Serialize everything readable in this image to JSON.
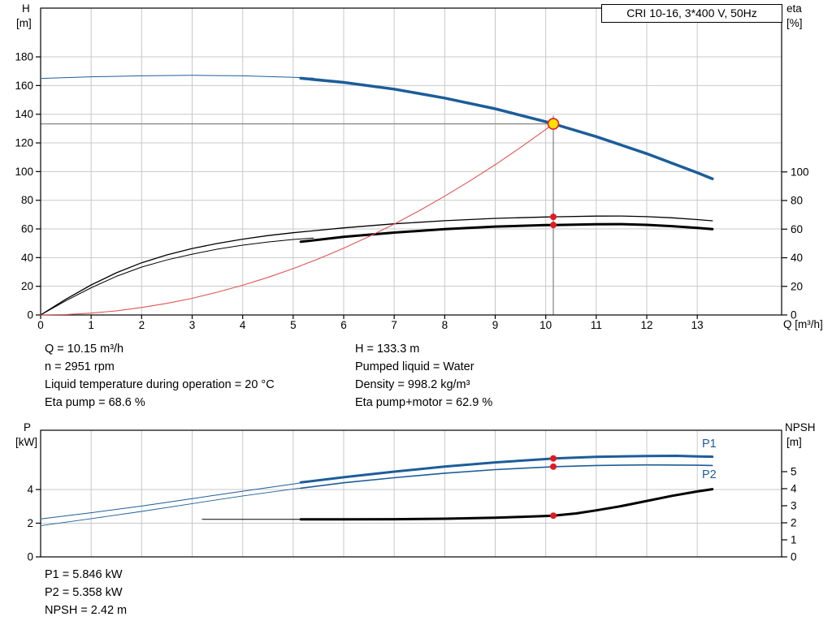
{
  "colors": {
    "blue": "#1c5d99",
    "black": "#000000",
    "red": "#e11b22",
    "system_red": "#dd5555",
    "duty_fill": "#ffe000",
    "grid": "#c8c8c8",
    "crosshair": "#8a8a8a",
    "frame": "#000000"
  },
  "stats": {
    "top_left": [
      "Q = 10.15 m³/h",
      "n = 2951 rpm",
      "Liquid temperature during operation = 20 °C",
      "Eta pump = 68.6 %"
    ],
    "top_right": [
      "H = 133.3 m",
      "Pumped liquid = Water",
      "Density = 998.2 kg/m³",
      "Eta pump+motor = 62.9 %"
    ],
    "bottom": [
      "P1 = 5.846 kW",
      "P2 = 5.358 kW",
      "NPSH = 2.42 m"
    ]
  },
  "chart_data": [
    {
      "name": "hq-eta-chart",
      "type": "line",
      "title": "CRI 10-16, 3*400 V, 50Hz",
      "x_axis": {
        "label": "Q [m³/h]",
        "ticks": [
          0,
          1,
          2,
          3,
          4,
          5,
          6,
          7,
          8,
          9,
          10,
          11,
          12,
          13
        ],
        "range": [
          0,
          14.67
        ],
        "show_tick_labels": true
      },
      "y_left": {
        "label_lines": [
          "H",
          "[m]"
        ],
        "ticks": [
          0,
          20,
          40,
          60,
          80,
          100,
          120,
          140,
          160,
          180
        ],
        "range": [
          0,
          214
        ]
      },
      "y_right": {
        "label_lines": [
          "eta",
          "[%]"
        ],
        "ticks": [
          0,
          20,
          40,
          60,
          80,
          100
        ],
        "range": [
          0,
          214.5
        ]
      },
      "duty_point": {
        "q_m3h": 10.15,
        "h_m": 133.3,
        "eta_pump_pct": 68.6,
        "eta_pump_motor_pct": 62.9
      },
      "crosshair": {
        "q": 10.15,
        "h": 133.3,
        "line_top": 139
      },
      "series": [
        {
          "name": "head-curve-extrapolated",
          "axis": "left",
          "color": "blue",
          "width": 1,
          "points": [
            [
              0,
              165
            ],
            [
              1,
              166.1
            ],
            [
              2,
              166.8
            ],
            [
              3,
              167.1
            ],
            [
              4,
              166.8
            ],
            [
              5,
              165.7
            ],
            [
              5.4,
              165.2
            ]
          ]
        },
        {
          "name": "head-curve",
          "axis": "left",
          "color": "blue",
          "width": 3.5,
          "points": [
            [
              5.15,
              165.1
            ],
            [
              6,
              162.2
            ],
            [
              7,
              157.5
            ],
            [
              8,
              151.3
            ],
            [
              9,
              143.8
            ],
            [
              10,
              134.8
            ],
            [
              10.15,
              133.3
            ],
            [
              11,
              124.4
            ],
            [
              12,
              112.5
            ],
            [
              13,
              99.2
            ],
            [
              13.3,
              95
            ]
          ]
        },
        {
          "name": "eta-pump-curve",
          "axis": "right",
          "color": "black",
          "width": 1.3,
          "points": [
            [
              0,
              0
            ],
            [
              0.5,
              11
            ],
            [
              1,
              21
            ],
            [
              1.5,
              29.5
            ],
            [
              2,
              36.5
            ],
            [
              2.5,
              42
            ],
            [
              3,
              46.5
            ],
            [
              3.5,
              50
            ],
            [
              4,
              53
            ],
            [
              4.5,
              55.5
            ],
            [
              5,
              57.5
            ],
            [
              6,
              60.9
            ],
            [
              7,
              63.7
            ],
            [
              8,
              65.9
            ],
            [
              9,
              67.5
            ],
            [
              10,
              68.5
            ],
            [
              10.15,
              68.6
            ],
            [
              11,
              69.1
            ],
            [
              11.5,
              69.2
            ],
            [
              12,
              68.7
            ],
            [
              12.5,
              67.9
            ],
            [
              13,
              66.7
            ],
            [
              13.3,
              65.8
            ]
          ]
        },
        {
          "name": "eta-pump-motor-extrapolated",
          "axis": "right",
          "color": "black",
          "width": 1,
          "points": [
            [
              0,
              0
            ],
            [
              0.5,
              10
            ],
            [
              1,
              19
            ],
            [
              1.5,
              27
            ],
            [
              2,
              33.5
            ],
            [
              2.5,
              38.5
            ],
            [
              3,
              42.5
            ],
            [
              3.5,
              46
            ],
            [
              4,
              48.8
            ],
            [
              4.5,
              51
            ],
            [
              5,
              52.8
            ],
            [
              5.4,
              53.8
            ]
          ]
        },
        {
          "name": "eta-pump-motor-curve",
          "axis": "right",
          "color": "black",
          "width": 3,
          "points": [
            [
              5.15,
              51.2
            ],
            [
              6,
              54.6
            ],
            [
              7,
              57.6
            ],
            [
              8,
              60
            ],
            [
              9,
              61.8
            ],
            [
              10,
              62.8
            ],
            [
              10.15,
              62.9
            ],
            [
              11,
              63.4
            ],
            [
              11.5,
              63.5
            ],
            [
              12,
              63
            ],
            [
              12.5,
              62.1
            ],
            [
              13,
              60.9
            ],
            [
              13.3,
              60
            ]
          ]
        },
        {
          "name": "system-curve",
          "axis": "left",
          "color": "system_red",
          "width": 1.1,
          "points": [
            [
              0,
              0
            ],
            [
              0.5,
              0.3
            ],
            [
              1,
              1.3
            ],
            [
              1.5,
              2.9
            ],
            [
              2,
              5.2
            ],
            [
              2.5,
              8.1
            ],
            [
              3,
              11.6
            ],
            [
              3.5,
              15.9
            ],
            [
              4,
              20.7
            ],
            [
              4.5,
              26.2
            ],
            [
              5,
              32.3
            ],
            [
              5.5,
              39.1
            ],
            [
              6,
              46.6
            ],
            [
              6.5,
              54.7
            ],
            [
              7,
              63.4
            ],
            [
              7.5,
              72.8
            ],
            [
              8,
              82.8
            ],
            [
              8.5,
              93.5
            ],
            [
              9,
              104.8
            ],
            [
              9.5,
              116.8
            ],
            [
              10,
              129.4
            ],
            [
              10.15,
              133.3
            ]
          ]
        }
      ],
      "markers": [
        {
          "name": "duty-point-marker",
          "axis": "left",
          "q": 10.15,
          "v": 133.3,
          "style": "ring"
        },
        {
          "name": "eta-pump-duty-dot",
          "axis": "right",
          "q": 10.15,
          "v": 68.6,
          "style": "dot"
        },
        {
          "name": "eta-pump-motor-duty-dot",
          "axis": "right",
          "q": 10.15,
          "v": 62.9,
          "style": "dot"
        }
      ]
    },
    {
      "name": "power-npsh-chart",
      "type": "line",
      "x_axis": {
        "ticks": [
          0,
          1,
          2,
          3,
          4,
          5,
          6,
          7,
          8,
          9,
          10,
          11,
          12,
          13
        ],
        "range": [
          0,
          14.67
        ],
        "show_tick_labels": false
      },
      "y_left": {
        "label_lines": [
          "P",
          "[kW]"
        ],
        "ticks": [
          0,
          2,
          4
        ],
        "range": [
          0,
          7.52
        ]
      },
      "y_right": {
        "label_lines": [
          "NPSH",
          "[m]"
        ],
        "ticks": [
          0,
          1,
          2,
          3,
          4,
          5
        ],
        "range": [
          0,
          7.43
        ]
      },
      "duty_values": {
        "p1_kw": 5.846,
        "p2_kw": 5.358,
        "npsh_m": 2.42
      },
      "curve_labels": {
        "p1": "P1",
        "p2": "P2"
      },
      "series": [
        {
          "name": "p1-curve-extrapolated",
          "axis": "left",
          "color": "blue",
          "width": 1,
          "points": [
            [
              0,
              2.25
            ],
            [
              1,
              2.62
            ],
            [
              2,
              3.02
            ],
            [
              3,
              3.46
            ],
            [
              4,
              3.9
            ],
            [
              5,
              4.33
            ],
            [
              5.4,
              4.5
            ]
          ]
        },
        {
          "name": "p1-curve",
          "axis": "left",
          "color": "blue",
          "width": 3,
          "points": [
            [
              5.15,
              4.42
            ],
            [
              6,
              4.73
            ],
            [
              7,
              5.06
            ],
            [
              8,
              5.36
            ],
            [
              9,
              5.61
            ],
            [
              10,
              5.81
            ],
            [
              10.15,
              5.846
            ],
            [
              11,
              5.94
            ],
            [
              12,
              5.99
            ],
            [
              12.6,
              6
            ],
            [
              13,
              5.97
            ],
            [
              13.3,
              5.95
            ]
          ]
        },
        {
          "name": "p2-curve-extrapolated",
          "axis": "left",
          "color": "blue",
          "width": 0.9,
          "points": [
            [
              0,
              1.85
            ],
            [
              1,
              2.27
            ],
            [
              2,
              2.7
            ],
            [
              3,
              3.16
            ],
            [
              4,
              3.62
            ],
            [
              5,
              4.03
            ],
            [
              5.4,
              4.18
            ]
          ]
        },
        {
          "name": "p2-curve",
          "axis": "left",
          "color": "blue",
          "width": 1.6,
          "points": [
            [
              5.15,
              4.08
            ],
            [
              6,
              4.4
            ],
            [
              7,
              4.7
            ],
            [
              8,
              4.97
            ],
            [
              9,
              5.18
            ],
            [
              10,
              5.33
            ],
            [
              10.15,
              5.358
            ],
            [
              11,
              5.43
            ],
            [
              12,
              5.46
            ],
            [
              13,
              5.44
            ],
            [
              13.3,
              5.43
            ]
          ]
        },
        {
          "name": "npsh-curve-extrapolated",
          "axis": "right",
          "color": "black",
          "width": 1,
          "points": [
            [
              3.2,
              2.2
            ],
            [
              4,
              2.2
            ],
            [
              5,
              2.2
            ],
            [
              5.4,
              2.2
            ]
          ]
        },
        {
          "name": "npsh-curve",
          "axis": "right",
          "color": "black",
          "width": 3,
          "points": [
            [
              5.15,
              2.2
            ],
            [
              6,
              2.2
            ],
            [
              7,
              2.21
            ],
            [
              8,
              2.24
            ],
            [
              9,
              2.3
            ],
            [
              9.5,
              2.35
            ],
            [
              10,
              2.4
            ],
            [
              10.15,
              2.42
            ],
            [
              10.6,
              2.55
            ],
            [
              11,
              2.73
            ],
            [
              11.5,
              2.98
            ],
            [
              12,
              3.28
            ],
            [
              12.5,
              3.58
            ],
            [
              13,
              3.84
            ],
            [
              13.3,
              3.97
            ]
          ]
        }
      ],
      "markers": [
        {
          "name": "p1-duty-dot",
          "axis": "left",
          "q": 10.15,
          "v": 5.846,
          "style": "dot"
        },
        {
          "name": "p2-duty-dot",
          "axis": "left",
          "q": 10.15,
          "v": 5.358,
          "style": "dot"
        },
        {
          "name": "npsh-duty-dot",
          "axis": "right",
          "q": 10.15,
          "v": 2.42,
          "style": "dot"
        }
      ]
    }
  ]
}
